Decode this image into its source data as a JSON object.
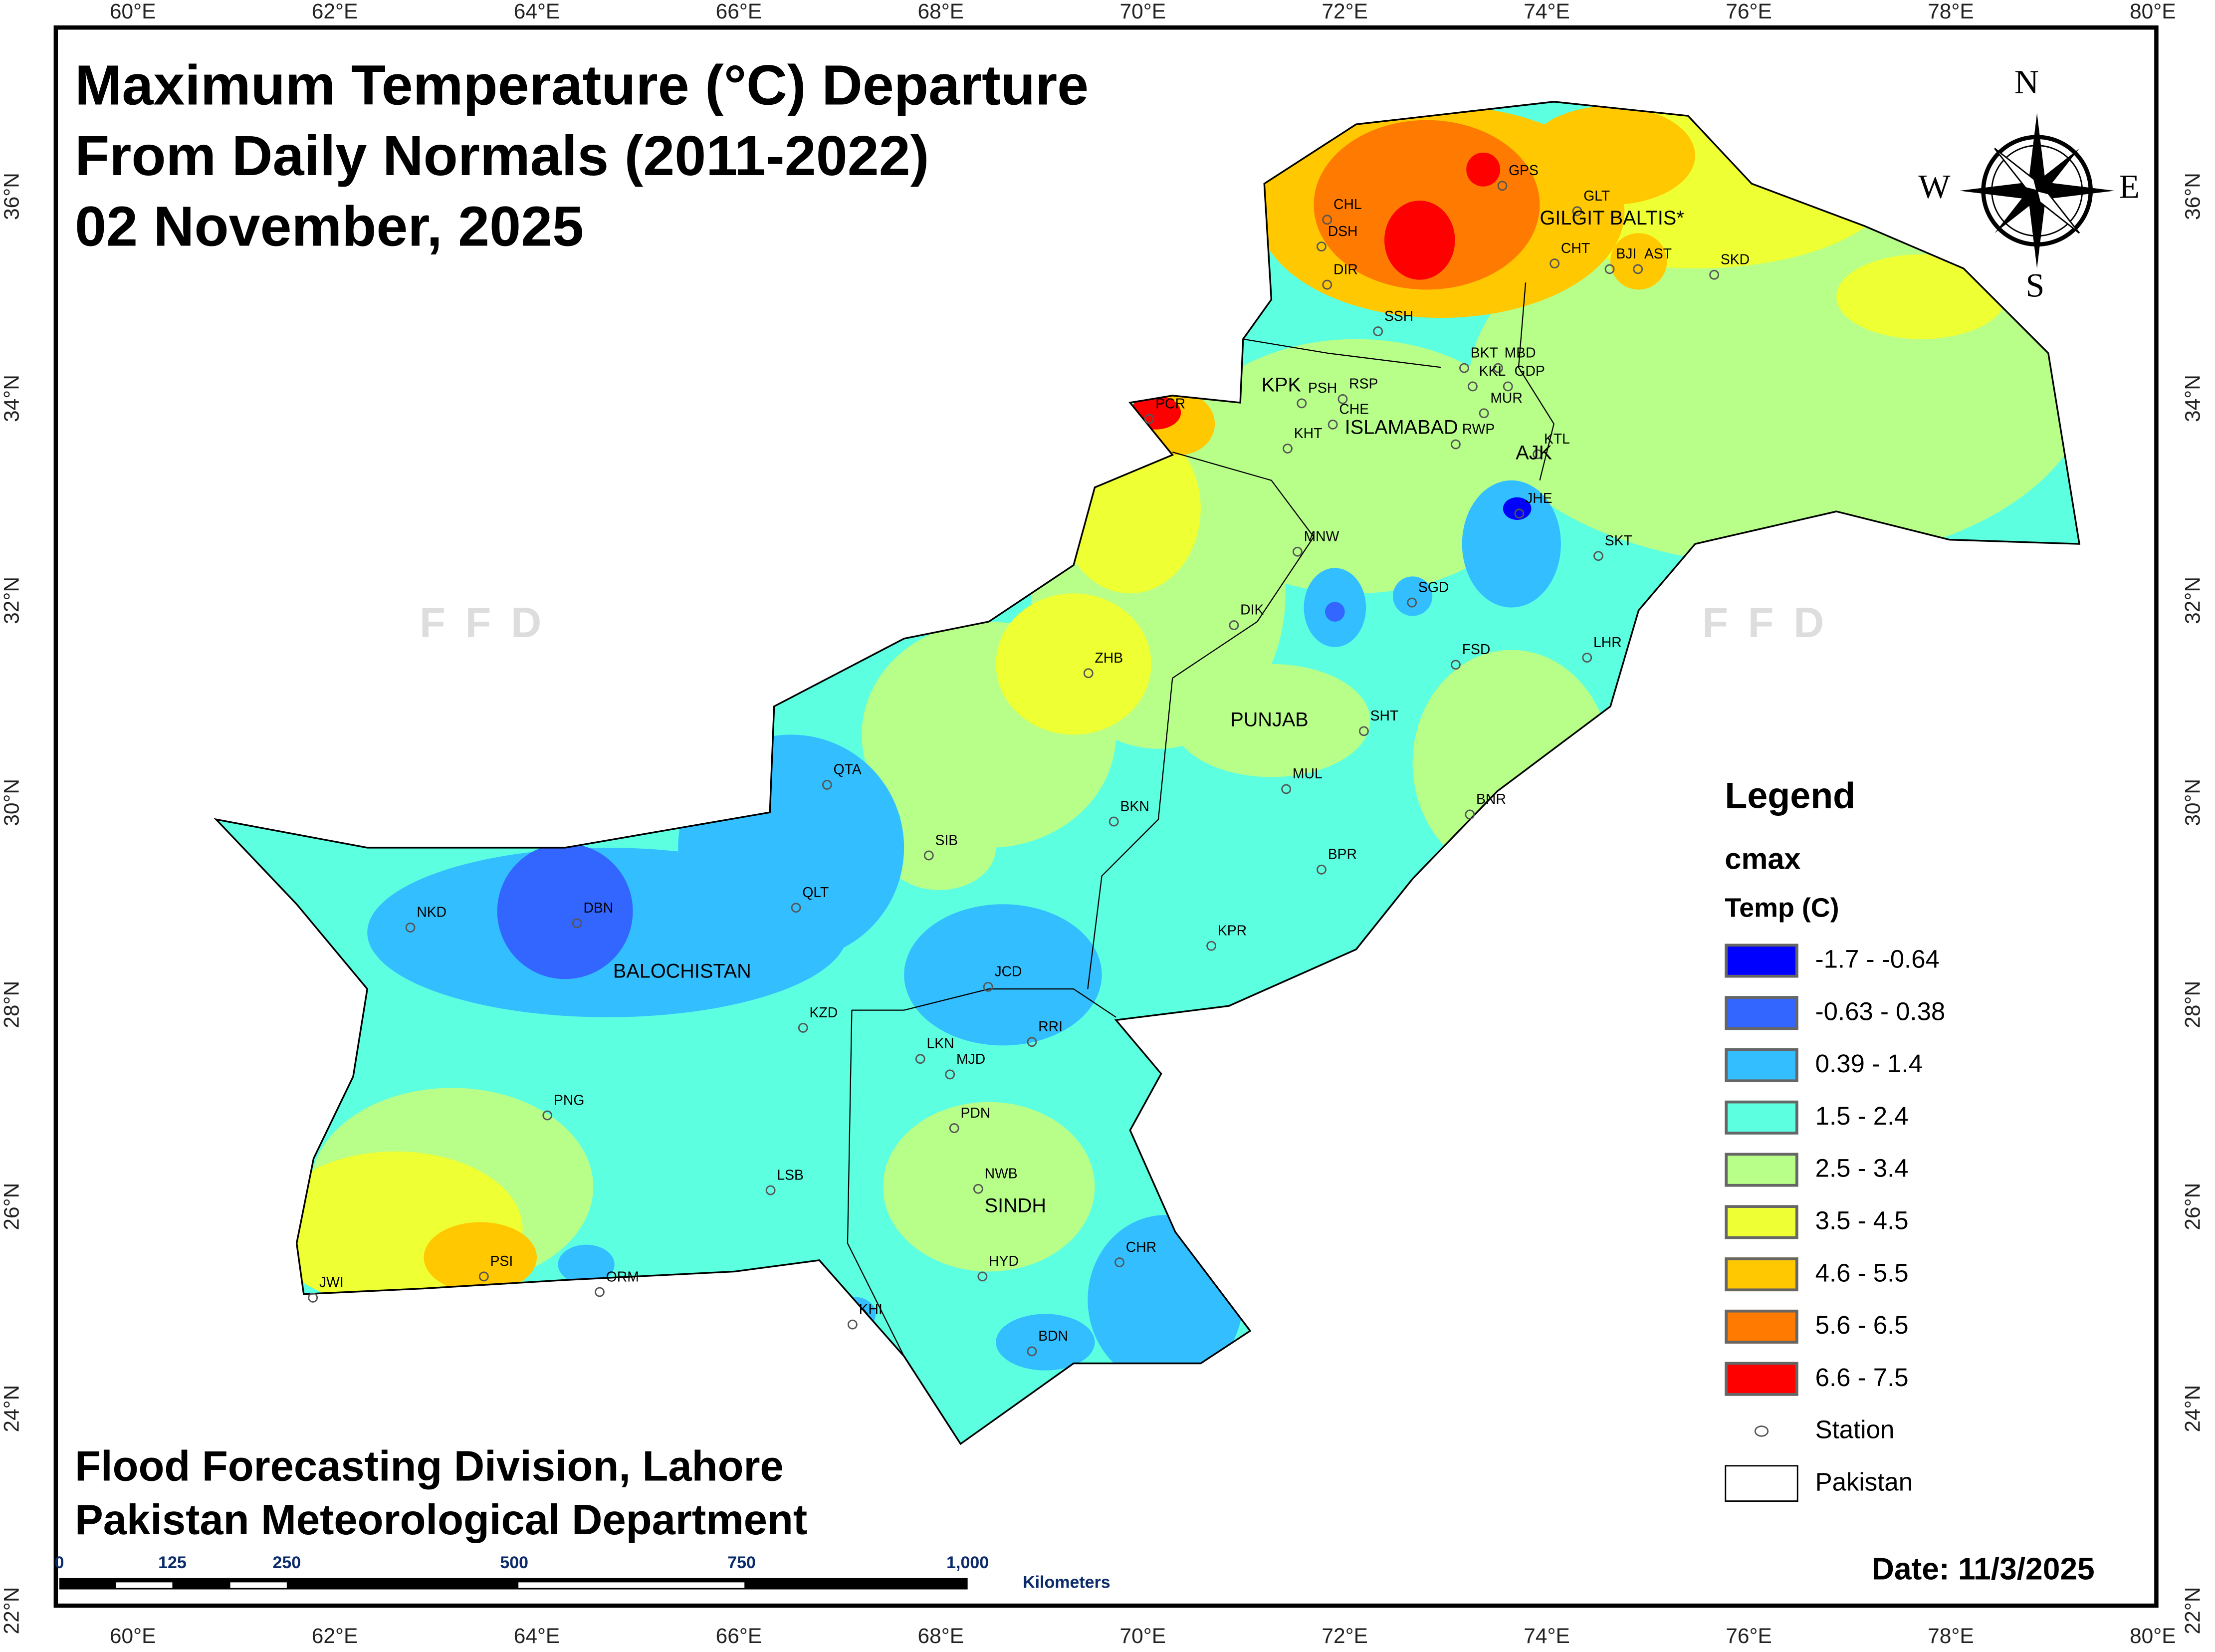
{
  "title_lines": [
    "Maximum Temperature (°C) Departure",
    "From Daily Normals (2011-2022)",
    "02 November, 2025"
  ],
  "credits": [
    "Flood Forecasting Division, Lahore",
    "Pakistan Meteorological Department"
  ],
  "date": "Date: 11/3/2025",
  "watermark": "FFD",
  "lon_ticks": [
    "60°E",
    "62°E",
    "64°E",
    "66°E",
    "68°E",
    "70°E",
    "72°E",
    "74°E",
    "76°E",
    "78°E",
    "80°E"
  ],
  "lat_ticks": [
    "36°N",
    "34°N",
    "32°N",
    "30°N",
    "28°N",
    "26°N",
    "24°N",
    "22°N"
  ],
  "compass": {
    "n": "N",
    "s": "S",
    "e": "E",
    "w": "W"
  },
  "legend": {
    "title": "Legend",
    "layer": "cmax",
    "field": "Temp (C)",
    "classes": [
      {
        "label": "-1.7 - -0.64",
        "color": "#0000ff"
      },
      {
        "label": "-0.63 - 0.38",
        "color": "#3366ff"
      },
      {
        "label": "0.39 - 1.4",
        "color": "#33bfff"
      },
      {
        "label": "1.5 - 2.4",
        "color": "#5cffe0"
      },
      {
        "label": "2.5 - 3.4",
        "color": "#b8ff8a"
      },
      {
        "label": "3.5 - 4.5",
        "color": "#eeff33"
      },
      {
        "label": "4.6 - 5.5",
        "color": "#ffc800"
      },
      {
        "label": "5.6 - 6.5",
        "color": "#ff7a00"
      },
      {
        "label": "6.6 - 7.5",
        "color": "#ff0000"
      }
    ],
    "station": "Station",
    "boundary": "Pakistan"
  },
  "scale_bar": {
    "labels": [
      "0",
      "125",
      "250",
      "500",
      "750",
      "1,000"
    ],
    "unit": "Kilometers"
  },
  "regions": [
    "GILGIT BALTIS*",
    "KPK",
    "ISLAMABAD",
    "AJK",
    "PUNJAB",
    "BALOCHISTAN",
    "SINDH"
  ],
  "stations": [
    "GPS",
    "GLT",
    "CHL",
    "DSH",
    "CHT",
    "BJI",
    "AST",
    "SKD",
    "DIR",
    "SSH",
    "BKT",
    "MBD",
    "KKL",
    "GDP",
    "PSH",
    "RSP",
    "MUR",
    "PCR",
    "CHE",
    "KHT",
    "RWP",
    "KTL",
    "JHE",
    "SKT",
    "MNW",
    "SGD",
    "DIK",
    "LHR",
    "FSD",
    "ZHB",
    "SHT",
    "QTA",
    "MUL",
    "BKN",
    "BNR",
    "SIB",
    "BPR",
    "QLT",
    "NKD",
    "DBN",
    "KPR",
    "JCD",
    "KZD",
    "RRI",
    "LKN",
    "MJD",
    "PNG",
    "PDN",
    "LSB",
    "NWB",
    "CHR",
    "HYD",
    "PSI",
    "ORM",
    "JWI",
    "KHI",
    "BDN"
  ]
}
